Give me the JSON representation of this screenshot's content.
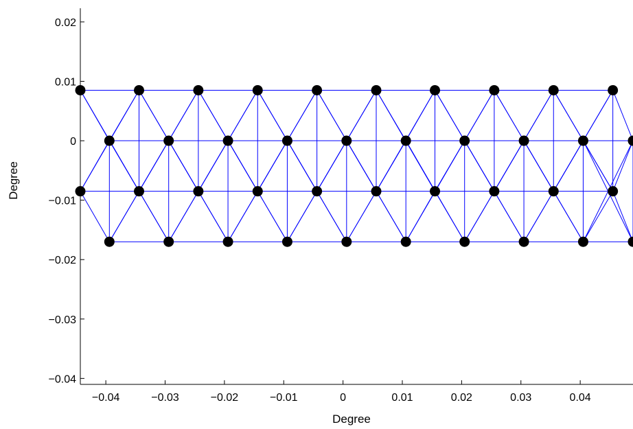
{
  "chart_data": {
    "type": "scatter",
    "title": "",
    "xlabel": "Degree",
    "ylabel": "Degree",
    "xlim": [
      -0.0443,
      0.0489
    ],
    "ylim": [
      -0.041,
      0.0223
    ],
    "xticks": [
      -0.04,
      -0.03,
      -0.02,
      -0.01,
      0,
      0.01,
      0.02,
      0.03,
      0.04
    ],
    "xtick_labels": [
      "−0.04",
      "−0.03",
      "−0.02",
      "−0.01",
      "0",
      "0.01",
      "0.02",
      "0.03",
      "0.04"
    ],
    "yticks": [
      0.02,
      0.01,
      0,
      -0.01,
      -0.02,
      -0.03,
      -0.04
    ],
    "ytick_labels": [
      "0.02",
      "0.01",
      "0",
      "−0.01",
      "−0.02",
      "−0.03",
      "−0.04"
    ],
    "grid": false,
    "marker_color": "#000000",
    "edge_color": "#0000ff",
    "rows": [
      {
        "y": 0.0085,
        "x": [
          -0.0443,
          -0.0344,
          -0.0244,
          -0.0144,
          -0.0044,
          0.0056,
          0.0155,
          0.0255,
          0.0355,
          0.0455
        ]
      },
      {
        "y": 0.0,
        "x": [
          -0.0394,
          -0.0294,
          -0.0194,
          -0.0094,
          0.0006,
          0.0106,
          0.0205,
          0.0305,
          0.0405,
          0.0489
        ]
      },
      {
        "y": -0.0085,
        "x": [
          -0.0443,
          -0.0344,
          -0.0244,
          -0.0144,
          -0.0044,
          0.0056,
          0.0155,
          0.0255,
          0.0355,
          0.0455
        ]
      },
      {
        "y": -0.017,
        "x": [
          -0.0394,
          -0.0294,
          -0.0194,
          -0.0094,
          0.0006,
          0.0106,
          0.0205,
          0.0305,
          0.0405,
          0.0489
        ]
      }
    ]
  }
}
